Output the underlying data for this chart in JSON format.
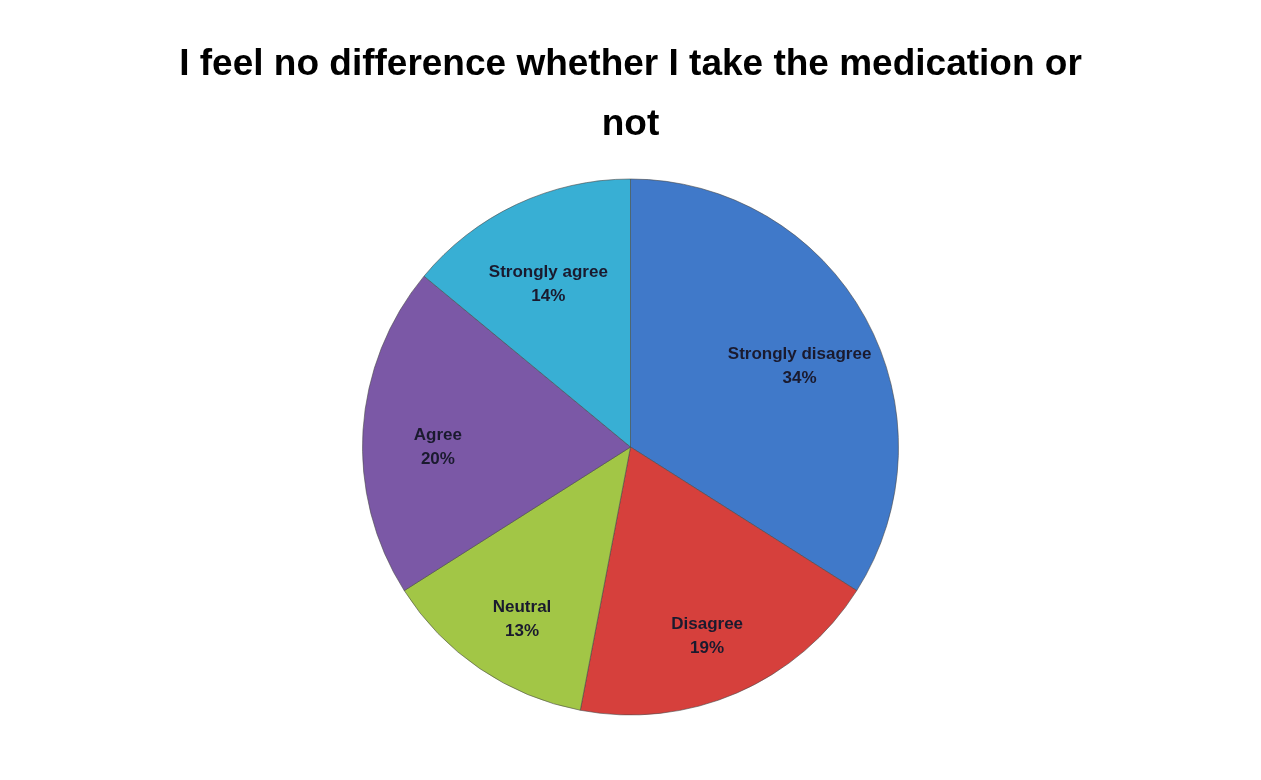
{
  "chart_data": {
    "type": "pie",
    "title": "I feel no difference whether I take the medication or not",
    "categories": [
      "Strongly disagree",
      "Disagree",
      "Neutral",
      "Agree",
      "Strongly agree"
    ],
    "values": [
      34,
      19,
      13,
      20,
      14
    ],
    "value_labels": [
      "34%",
      "19%",
      "13%",
      "20%",
      "14%"
    ],
    "colors": [
      "#4079c9",
      "#d6403c",
      "#a2c646",
      "#7b58a6",
      "#38afd4"
    ]
  }
}
